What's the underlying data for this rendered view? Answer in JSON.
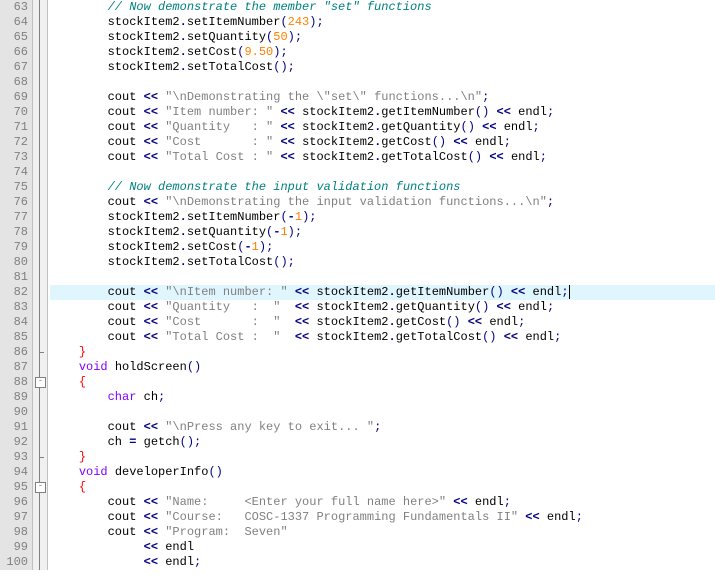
{
  "first_line": 63,
  "highlight_line": 82,
  "fold_boxes": [
    88,
    95
  ],
  "fold_ends": [
    86,
    93
  ],
  "lines": [
    {
      "n": 63,
      "i": 8,
      "t": [
        [
          "comment",
          "// Now demonstrate the member \"set\" functions"
        ]
      ]
    },
    {
      "n": 64,
      "i": 8,
      "t": [
        [
          "ident",
          "stockItem2"
        ],
        [
          "op",
          "."
        ],
        [
          "ident",
          "setItemNumber"
        ],
        [
          "paren",
          "("
        ],
        [
          "num",
          "243"
        ],
        [
          "paren",
          ")"
        ],
        [
          "semi",
          ";"
        ]
      ]
    },
    {
      "n": 65,
      "i": 8,
      "t": [
        [
          "ident",
          "stockItem2"
        ],
        [
          "op",
          "."
        ],
        [
          "ident",
          "setQuantity"
        ],
        [
          "paren",
          "("
        ],
        [
          "num",
          "50"
        ],
        [
          "paren",
          ")"
        ],
        [
          "semi",
          ";"
        ]
      ]
    },
    {
      "n": 66,
      "i": 8,
      "t": [
        [
          "ident",
          "stockItem2"
        ],
        [
          "op",
          "."
        ],
        [
          "ident",
          "setCost"
        ],
        [
          "paren",
          "("
        ],
        [
          "num",
          "9.50"
        ],
        [
          "paren",
          ")"
        ],
        [
          "semi",
          ";"
        ]
      ]
    },
    {
      "n": 67,
      "i": 8,
      "t": [
        [
          "ident",
          "stockItem2"
        ],
        [
          "op",
          "."
        ],
        [
          "ident",
          "setTotalCost"
        ],
        [
          "paren",
          "()"
        ],
        [
          "semi",
          ";"
        ]
      ]
    },
    {
      "n": 68,
      "i": 0,
      "t": []
    },
    {
      "n": 69,
      "i": 8,
      "t": [
        [
          "ident",
          "cout "
        ],
        [
          "op",
          "<< "
        ],
        [
          "string",
          "\"\\nDemonstrating the \\\"set\\\" functions...\\n\""
        ],
        [
          "semi",
          ";"
        ]
      ]
    },
    {
      "n": 70,
      "i": 8,
      "t": [
        [
          "ident",
          "cout "
        ],
        [
          "op",
          "<< "
        ],
        [
          "string",
          "\"Item number: \""
        ],
        [
          "ident",
          " "
        ],
        [
          "op",
          "<< "
        ],
        [
          "ident",
          "stockItem2"
        ],
        [
          "op",
          "."
        ],
        [
          "ident",
          "getItemNumber"
        ],
        [
          "paren",
          "()"
        ],
        [
          "ident",
          " "
        ],
        [
          "op",
          "<< "
        ],
        [
          "ident",
          "endl"
        ],
        [
          "semi",
          ";"
        ]
      ]
    },
    {
      "n": 71,
      "i": 8,
      "t": [
        [
          "ident",
          "cout "
        ],
        [
          "op",
          "<< "
        ],
        [
          "string",
          "\"Quantity   : \""
        ],
        [
          "ident",
          " "
        ],
        [
          "op",
          "<< "
        ],
        [
          "ident",
          "stockItem2"
        ],
        [
          "op",
          "."
        ],
        [
          "ident",
          "getQuantity"
        ],
        [
          "paren",
          "()"
        ],
        [
          "ident",
          " "
        ],
        [
          "op",
          "<< "
        ],
        [
          "ident",
          "endl"
        ],
        [
          "semi",
          ";"
        ]
      ]
    },
    {
      "n": 72,
      "i": 8,
      "t": [
        [
          "ident",
          "cout "
        ],
        [
          "op",
          "<< "
        ],
        [
          "string",
          "\"Cost       : \""
        ],
        [
          "ident",
          " "
        ],
        [
          "op",
          "<< "
        ],
        [
          "ident",
          "stockItem2"
        ],
        [
          "op",
          "."
        ],
        [
          "ident",
          "getCost"
        ],
        [
          "paren",
          "()"
        ],
        [
          "ident",
          " "
        ],
        [
          "op",
          "<< "
        ],
        [
          "ident",
          "endl"
        ],
        [
          "semi",
          ";"
        ]
      ]
    },
    {
      "n": 73,
      "i": 8,
      "t": [
        [
          "ident",
          "cout "
        ],
        [
          "op",
          "<< "
        ],
        [
          "string",
          "\"Total Cost : \""
        ],
        [
          "ident",
          " "
        ],
        [
          "op",
          "<< "
        ],
        [
          "ident",
          "stockItem2"
        ],
        [
          "op",
          "."
        ],
        [
          "ident",
          "getTotalCost"
        ],
        [
          "paren",
          "()"
        ],
        [
          "ident",
          " "
        ],
        [
          "op",
          "<< "
        ],
        [
          "ident",
          "endl"
        ],
        [
          "semi",
          ";"
        ]
      ]
    },
    {
      "n": 74,
      "i": 0,
      "t": []
    },
    {
      "n": 75,
      "i": 8,
      "t": [
        [
          "comment",
          "// Now demonstrate the input validation functions"
        ]
      ]
    },
    {
      "n": 76,
      "i": 8,
      "t": [
        [
          "ident",
          "cout "
        ],
        [
          "op",
          "<< "
        ],
        [
          "string",
          "\"\\nDemonstrating the input validation functions...\\n\""
        ],
        [
          "semi",
          ";"
        ]
      ]
    },
    {
      "n": 77,
      "i": 8,
      "t": [
        [
          "ident",
          "stockItem2"
        ],
        [
          "op",
          "."
        ],
        [
          "ident",
          "setItemNumber"
        ],
        [
          "paren",
          "("
        ],
        [
          "op",
          "-"
        ],
        [
          "num",
          "1"
        ],
        [
          "paren",
          ")"
        ],
        [
          "semi",
          ";"
        ]
      ]
    },
    {
      "n": 78,
      "i": 8,
      "t": [
        [
          "ident",
          "stockItem2"
        ],
        [
          "op",
          "."
        ],
        [
          "ident",
          "setQuantity"
        ],
        [
          "paren",
          "("
        ],
        [
          "op",
          "-"
        ],
        [
          "num",
          "1"
        ],
        [
          "paren",
          ")"
        ],
        [
          "semi",
          ";"
        ]
      ]
    },
    {
      "n": 79,
      "i": 8,
      "t": [
        [
          "ident",
          "stockItem2"
        ],
        [
          "op",
          "."
        ],
        [
          "ident",
          "setCost"
        ],
        [
          "paren",
          "("
        ],
        [
          "op",
          "-"
        ],
        [
          "num",
          "1"
        ],
        [
          "paren",
          ")"
        ],
        [
          "semi",
          ";"
        ]
      ]
    },
    {
      "n": 80,
      "i": 8,
      "t": [
        [
          "ident",
          "stockItem2"
        ],
        [
          "op",
          "."
        ],
        [
          "ident",
          "setTotalCost"
        ],
        [
          "paren",
          "()"
        ],
        [
          "semi",
          ";"
        ]
      ]
    },
    {
      "n": 81,
      "i": 0,
      "t": []
    },
    {
      "n": 82,
      "i": 8,
      "t": [
        [
          "ident",
          "cout "
        ],
        [
          "op",
          "<< "
        ],
        [
          "string",
          "\"\\nItem number: \""
        ],
        [
          "ident",
          " "
        ],
        [
          "op",
          "<< "
        ],
        [
          "ident",
          "stockItem2"
        ],
        [
          "op",
          "."
        ],
        [
          "ident",
          "getItemNumber"
        ],
        [
          "paren",
          "()"
        ],
        [
          "ident",
          " "
        ],
        [
          "op",
          "<< "
        ],
        [
          "ident",
          "endl"
        ],
        [
          "semi",
          ";"
        ]
      ]
    },
    {
      "n": 83,
      "i": 8,
      "t": [
        [
          "ident",
          "cout "
        ],
        [
          "op",
          "<< "
        ],
        [
          "string",
          "\"Quantity   :  \""
        ],
        [
          "ident",
          "  "
        ],
        [
          "op",
          "<< "
        ],
        [
          "ident",
          "stockItem2"
        ],
        [
          "op",
          "."
        ],
        [
          "ident",
          "getQuantity"
        ],
        [
          "paren",
          "()"
        ],
        [
          "ident",
          " "
        ],
        [
          "op",
          "<< "
        ],
        [
          "ident",
          "endl"
        ],
        [
          "semi",
          ";"
        ]
      ]
    },
    {
      "n": 84,
      "i": 8,
      "t": [
        [
          "ident",
          "cout "
        ],
        [
          "op",
          "<< "
        ],
        [
          "string",
          "\"Cost       :  \""
        ],
        [
          "ident",
          "  "
        ],
        [
          "op",
          "<< "
        ],
        [
          "ident",
          "stockItem2"
        ],
        [
          "op",
          "."
        ],
        [
          "ident",
          "getCost"
        ],
        [
          "paren",
          "()"
        ],
        [
          "ident",
          " "
        ],
        [
          "op",
          "<< "
        ],
        [
          "ident",
          "endl"
        ],
        [
          "semi",
          ";"
        ]
      ]
    },
    {
      "n": 85,
      "i": 8,
      "t": [
        [
          "ident",
          "cout "
        ],
        [
          "op",
          "<< "
        ],
        [
          "string",
          "\"Total Cost :  \""
        ],
        [
          "ident",
          "  "
        ],
        [
          "op",
          "<< "
        ],
        [
          "ident",
          "stockItem2"
        ],
        [
          "op",
          "."
        ],
        [
          "ident",
          "getTotalCost"
        ],
        [
          "paren",
          "()"
        ],
        [
          "ident",
          " "
        ],
        [
          "op",
          "<< "
        ],
        [
          "ident",
          "endl"
        ],
        [
          "semi",
          ";"
        ]
      ]
    },
    {
      "n": 86,
      "i": 4,
      "t": [
        [
          "brace",
          "}"
        ]
      ]
    },
    {
      "n": 87,
      "i": 4,
      "t": [
        [
          "kw2",
          "void"
        ],
        [
          "ident",
          " holdScreen"
        ],
        [
          "paren",
          "()"
        ]
      ]
    },
    {
      "n": 88,
      "i": 4,
      "t": [
        [
          "brace",
          "{"
        ]
      ]
    },
    {
      "n": 89,
      "i": 8,
      "t": [
        [
          "kw2",
          "char"
        ],
        [
          "ident",
          " ch"
        ],
        [
          "semi",
          ";"
        ]
      ]
    },
    {
      "n": 90,
      "i": 0,
      "t": []
    },
    {
      "n": 91,
      "i": 8,
      "t": [
        [
          "ident",
          "cout "
        ],
        [
          "op",
          "<< "
        ],
        [
          "string",
          "\"\\nPress any key to exit... \""
        ],
        [
          "semi",
          ";"
        ]
      ]
    },
    {
      "n": 92,
      "i": 8,
      "t": [
        [
          "ident",
          "ch "
        ],
        [
          "op",
          "="
        ],
        [
          "ident",
          " getch"
        ],
        [
          "paren",
          "()"
        ],
        [
          "semi",
          ";"
        ]
      ]
    },
    {
      "n": 93,
      "i": 4,
      "t": [
        [
          "brace",
          "}"
        ]
      ]
    },
    {
      "n": 94,
      "i": 4,
      "t": [
        [
          "kw2",
          "void"
        ],
        [
          "ident",
          " developerInfo"
        ],
        [
          "paren",
          "()"
        ]
      ]
    },
    {
      "n": 95,
      "i": 4,
      "t": [
        [
          "brace",
          "{"
        ]
      ]
    },
    {
      "n": 96,
      "i": 8,
      "t": [
        [
          "ident",
          "cout "
        ],
        [
          "op",
          "<< "
        ],
        [
          "string",
          "\"Name:     <Enter your full name here>\""
        ],
        [
          "ident",
          " "
        ],
        [
          "op",
          "<< "
        ],
        [
          "ident",
          "endl"
        ],
        [
          "semi",
          ";"
        ]
      ]
    },
    {
      "n": 97,
      "i": 8,
      "t": [
        [
          "ident",
          "cout "
        ],
        [
          "op",
          "<< "
        ],
        [
          "string",
          "\"Course:   COSC-1337 Programming Fundamentals II\""
        ],
        [
          "ident",
          " "
        ],
        [
          "op",
          "<< "
        ],
        [
          "ident",
          "endl"
        ],
        [
          "semi",
          ";"
        ]
      ]
    },
    {
      "n": 98,
      "i": 8,
      "t": [
        [
          "ident",
          "cout "
        ],
        [
          "op",
          "<< "
        ],
        [
          "string",
          "\"Program:  Seven\""
        ]
      ]
    },
    {
      "n": 99,
      "i": 13,
      "t": [
        [
          "op",
          "<< "
        ],
        [
          "ident",
          "endl"
        ]
      ]
    },
    {
      "n": 100,
      "i": 13,
      "t": [
        [
          "op",
          "<< "
        ],
        [
          "ident",
          "endl"
        ],
        [
          "semi",
          ";"
        ]
      ]
    }
  ]
}
